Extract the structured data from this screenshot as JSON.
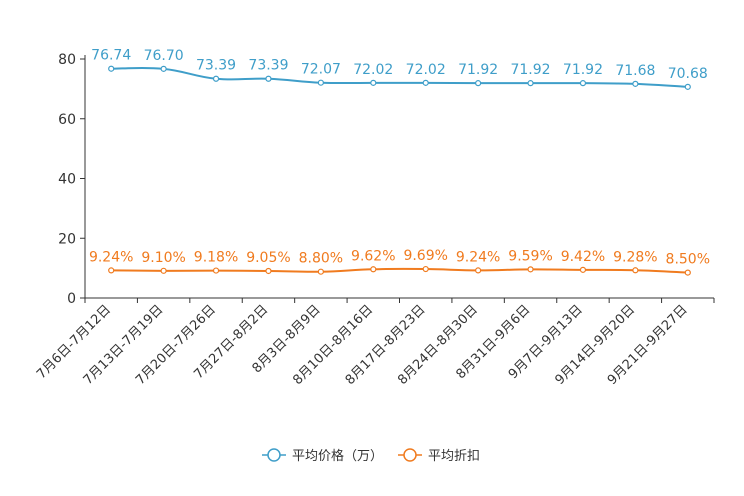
{
  "chart_data": {
    "type": "line",
    "categories": [
      "7月6日-7月12日",
      "7月13日-7月19日",
      "7月20日-7月26日",
      "7月27日-8月2日",
      "8月3日-8月9日",
      "8月10日-8月16日",
      "8月17日-8月23日",
      "8月24日-8月30日",
      "8月31日-9月6日",
      "9月7日-9月13日",
      "9月14日-9月20日",
      "9月21日-9月27日"
    ],
    "ylim": [
      0,
      80
    ],
    "yticks": [
      "0",
      "20",
      "40",
      "60",
      "80"
    ],
    "series": [
      {
        "name": "平均价格（万）",
        "color": "#3f9ec9",
        "values": [
          76.74,
          76.7,
          73.39,
          73.39,
          72.07,
          72.02,
          72.02,
          71.92,
          71.92,
          71.92,
          71.68,
          70.68
        ],
        "labels": [
          "76.74",
          "76.70",
          "73.39",
          "73.39",
          "72.07",
          "72.02",
          "72.02",
          "71.92",
          "71.92",
          "71.92",
          "71.68",
          "70.68"
        ]
      },
      {
        "name": "平均折扣",
        "color": "#f07b1f",
        "values": [
          9.24,
          9.1,
          9.18,
          9.05,
          8.8,
          9.62,
          9.69,
          9.24,
          9.59,
          9.42,
          9.28,
          8.5
        ],
        "labels": [
          "9.24%",
          "9.10%",
          "9.18%",
          "9.05%",
          "8.80%",
          "9.62%",
          "9.69%",
          "9.24%",
          "9.59%",
          "9.42%",
          "9.28%",
          "8.50%"
        ]
      }
    ]
  }
}
